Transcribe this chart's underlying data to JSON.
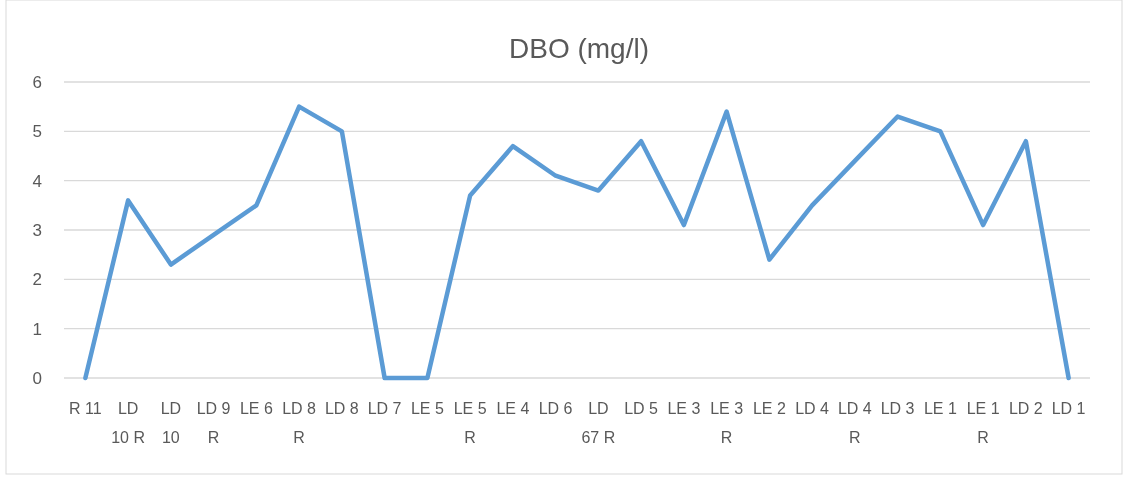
{
  "chart_data": {
    "type": "line",
    "title": "DBO (mg/l)",
    "categories": [
      "R 11",
      "LD 10 R",
      "LD 10",
      "LD 9 R",
      "LE 6",
      "LD 8 R",
      "LD 8",
      "LD 7",
      "LE 5",
      "LE 5 R",
      "LE 4",
      "LD 6",
      "LD 67 R",
      "LD 5",
      "LE 3",
      "LE 3 R",
      "LE 2",
      "LD 4",
      "LD 4 R",
      "LD 3",
      "LE 1",
      "LE 1 R",
      "LD 2",
      "LD 1"
    ],
    "series": [
      {
        "color": "#5b9bd5",
        "values": [
          0,
          3.6,
          2.3,
          2.9,
          3.5,
          5.5,
          5.0,
          0,
          0,
          3.7,
          4.7,
          4.1,
          3.8,
          4.8,
          3.1,
          5.4,
          2.4,
          3.5,
          4.4,
          5.3,
          5.0,
          3.1,
          4.8,
          0
        ]
      }
    ],
    "ylim": [
      0,
      6
    ],
    "yticks": [
      0,
      1,
      2,
      3,
      4,
      5,
      6
    ],
    "grid": "y",
    "marker": "none",
    "line_style": "solid"
  }
}
